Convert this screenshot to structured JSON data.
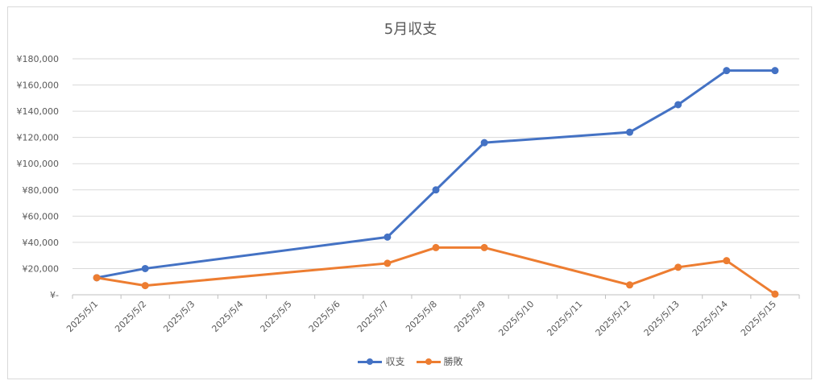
{
  "chart_data": {
    "type": "line",
    "title": "5月収支",
    "xlabel": "",
    "ylabel": "",
    "categories": [
      "2025/5/1",
      "2025/5/2",
      "2025/5/3",
      "2025/5/4",
      "2025/5/5",
      "2025/5/6",
      "2025/5/7",
      "2025/5/8",
      "2025/5/9",
      "2025/5/10",
      "2025/5/11",
      "2025/5/12",
      "2025/5/13",
      "2025/5/14",
      "2025/5/15"
    ],
    "y_ticks": [
      "¥-",
      "¥20,000",
      "¥40,000",
      "¥60,000",
      "¥80,000",
      "¥100,000",
      "¥120,000",
      "¥140,000",
      "¥160,000",
      "¥180,000"
    ],
    "ylim": [
      0,
      180000
    ],
    "grid": true,
    "legend_position": "bottom",
    "series": [
      {
        "name": "収支",
        "color": "#4472c4",
        "points": [
          {
            "x": "2025/5/1",
            "y": 13000
          },
          {
            "x": "2025/5/2",
            "y": 20000
          },
          {
            "x": "2025/5/7",
            "y": 44000
          },
          {
            "x": "2025/5/8",
            "y": 80000
          },
          {
            "x": "2025/5/9",
            "y": 116000
          },
          {
            "x": "2025/5/12",
            "y": 124000
          },
          {
            "x": "2025/5/13",
            "y": 145000
          },
          {
            "x": "2025/5/14",
            "y": 171000
          },
          {
            "x": "2025/5/15",
            "y": 171000
          }
        ]
      },
      {
        "name": "勝敗",
        "color": "#ed7d31",
        "points": [
          {
            "x": "2025/5/1",
            "y": 13000
          },
          {
            "x": "2025/5/2",
            "y": 7000
          },
          {
            "x": "2025/5/7",
            "y": 24000
          },
          {
            "x": "2025/5/8",
            "y": 36000
          },
          {
            "x": "2025/5/9",
            "y": 36000
          },
          {
            "x": "2025/5/12",
            "y": 7500
          },
          {
            "x": "2025/5/13",
            "y": 21000
          },
          {
            "x": "2025/5/14",
            "y": 26000
          },
          {
            "x": "2025/5/15",
            "y": 500
          }
        ]
      }
    ]
  }
}
